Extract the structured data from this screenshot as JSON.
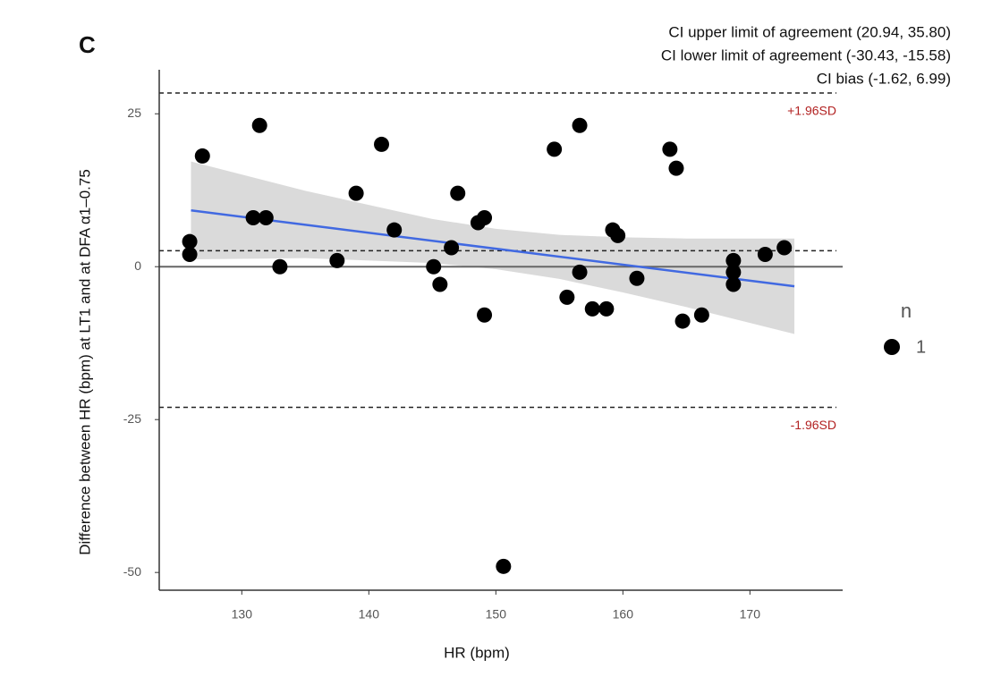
{
  "chart_data": {
    "type": "scatter",
    "panel_label": "C",
    "x_label": "HR (bpm)",
    "y_label": "Difference between HR (bpm) at LT1 and at DFA α1–0.75",
    "annotations": [
      "CI upper limit of agreement  (20.94, 35.80)",
      "CI lower limit of agreement  (-30.43, -15.58)",
      "CI bias (-1.62, 6.99)"
    ],
    "legend_title": "n",
    "x": [
      125.9,
      125.9,
      126.9,
      131.4,
      130.9,
      131.9,
      133.0,
      137.5,
      139.0,
      141.0,
      142.0,
      145.1,
      145.6,
      146.5,
      147.0,
      148.6,
      149.1,
      149.1,
      150.6,
      154.6,
      155.6,
      156.6,
      156.6,
      157.6,
      158.7,
      159.2,
      159.6,
      161.1,
      163.7,
      164.2,
      164.7,
      166.2,
      168.7,
      168.7,
      168.7,
      171.2,
      172.7
    ],
    "series": [
      {
        "name": "1",
        "color": "#000000",
        "values": [
          4.1,
          2.0,
          18.1,
          23.1,
          8.0,
          8.0,
          0.0,
          1.0,
          12.0,
          20.0,
          6.0,
          0.0,
          -2.9,
          3.1,
          12.0,
          7.2,
          8.0,
          -7.9,
          -49.0,
          19.2,
          -5.0,
          23.1,
          -0.9,
          -6.9,
          -6.9,
          6.0,
          5.1,
          -1.9,
          19.2,
          16.1,
          -8.9,
          -7.9,
          1.0,
          -0.9,
          -2.9,
          2.0,
          3.1
        ]
      }
    ],
    "reference_lines": [
      {
        "value": 28.4,
        "label": "+1.96SD"
      },
      {
        "value": 2.6
      },
      {
        "value": -23.0,
        "label": "-1.96SD"
      }
    ],
    "reference_label_color": "#b22222",
    "zero_line": 0,
    "fit": {
      "color": "#4169e1",
      "x": [
        126,
        173.5
      ],
      "y": [
        9.2,
        -3.2
      ]
    },
    "band": {
      "color": "#d3d3d3",
      "x": [
        126,
        135,
        145,
        150,
        155,
        160,
        165,
        173.5
      ],
      "upper": [
        17.2,
        12.4,
        7.8,
        6.2,
        5.2,
        4.8,
        4.6,
        4.6
      ],
      "lower": [
        1.2,
        1.4,
        0.6,
        -0.4,
        -2.0,
        -4.2,
        -6.6,
        -11.0
      ]
    },
    "xlim": [
      123.5,
      177.3
    ],
    "ylim": [
      -52.9,
      32.2
    ],
    "xticks": [
      130,
      140,
      150,
      160,
      170
    ],
    "yticks": [
      -50,
      -25,
      0,
      25
    ]
  }
}
